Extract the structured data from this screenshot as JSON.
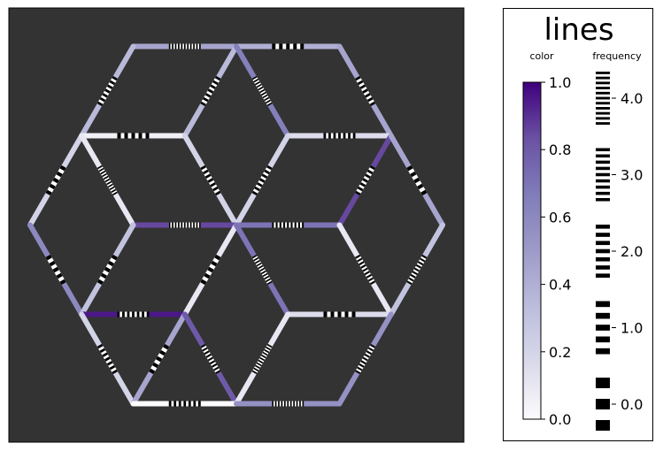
{
  "chart_data": {
    "type": "line",
    "title": "",
    "background_color": "#333333",
    "segment_colormap": "Purples",
    "colormap_stops": [
      "#fcfbfd",
      "#dadaeb",
      "#bcbddc",
      "#9e9ac8",
      "#807dba",
      "#6a51a3",
      "#3f007d"
    ],
    "segments": [
      {
        "x1": -2,
        "y1": 4,
        "x2": 0,
        "y2": 4,
        "color_value": 0.45,
        "frequency": 4
      },
      {
        "x1": 0,
        "y1": 4,
        "x2": 2,
        "y2": 4,
        "color_value": 0.4,
        "frequency": 1
      },
      {
        "x1": -2,
        "y1": 4,
        "x2": -3,
        "y2": 2,
        "color_value": 0.35,
        "frequency": 2
      },
      {
        "x1": 0,
        "y1": 4,
        "x2": -1,
        "y2": 2,
        "color_value": 0.35,
        "frequency": 2
      },
      {
        "x1": 0,
        "y1": 4,
        "x2": 1,
        "y2": 2,
        "color_value": 0.65,
        "frequency": 4
      },
      {
        "x1": 2,
        "y1": 4,
        "x2": 3,
        "y2": 2,
        "color_value": 0.45,
        "frequency": 2
      },
      {
        "x1": -3,
        "y1": 2,
        "x2": -1,
        "y2": 2,
        "color_value": 0.05,
        "frequency": 1
      },
      {
        "x1": 1,
        "y1": 2,
        "x2": 3,
        "y2": 2,
        "color_value": 0.15,
        "frequency": 2
      },
      {
        "x1": -3,
        "y1": 2,
        "x2": -4,
        "y2": 0,
        "color_value": 0.2,
        "frequency": 1
      },
      {
        "x1": -3,
        "y1": 2,
        "x2": -2,
        "y2": 0,
        "color_value": 0.1,
        "frequency": 4
      },
      {
        "x1": -1,
        "y1": 2,
        "x2": 0,
        "y2": 0,
        "color_value": 0.2,
        "frequency": 2
      },
      {
        "x1": 1,
        "y1": 2,
        "x2": 0,
        "y2": 0,
        "color_value": 0.2,
        "frequency": 2
      },
      {
        "x1": 3,
        "y1": 2,
        "x2": 2,
        "y2": 0,
        "color_value": 0.85,
        "frequency": 2
      },
      {
        "x1": 3,
        "y1": 2,
        "x2": 4,
        "y2": 0,
        "color_value": 0.45,
        "frequency": 1
      },
      {
        "x1": -2,
        "y1": 0,
        "x2": 0,
        "y2": 0,
        "color_value": 0.85,
        "frequency": 4
      },
      {
        "x1": 0,
        "y1": 0,
        "x2": 2,
        "y2": 0,
        "color_value": 0.7,
        "frequency": 3
      },
      {
        "x1": -4,
        "y1": 0,
        "x2": -3,
        "y2": -2,
        "color_value": 0.6,
        "frequency": 1
      },
      {
        "x1": 0,
        "y1": 0,
        "x2": -1,
        "y2": -2,
        "color_value": 0.1,
        "frequency": 1
      },
      {
        "x1": 0,
        "y1": 0,
        "x2": 1,
        "y2": -2,
        "color_value": 0.7,
        "frequency": 4
      },
      {
        "x1": 2,
        "y1": 0,
        "x2": 3,
        "y2": -2,
        "color_value": 0.1,
        "frequency": 3
      },
      {
        "x1": 4,
        "y1": 0,
        "x2": 3,
        "y2": -2,
        "color_value": 0.3,
        "frequency": 3
      },
      {
        "x1": -2,
        "y1": 0,
        "x2": -3,
        "y2": -2,
        "color_value": 0.3,
        "frequency": 1
      },
      {
        "x1": -3,
        "y1": -2,
        "x2": -1,
        "y2": -2,
        "color_value": 0.95,
        "frequency": 2
      },
      {
        "x1": 1,
        "y1": -2,
        "x2": 3,
        "y2": -2,
        "color_value": 0.15,
        "frequency": 1
      },
      {
        "x1": -3,
        "y1": -2,
        "x2": -2,
        "y2": -4,
        "color_value": 0.2,
        "frequency": 2
      },
      {
        "x1": -1,
        "y1": -2,
        "x2": -2,
        "y2": -4,
        "color_value": 0.45,
        "frequency": 1
      },
      {
        "x1": -1,
        "y1": -2,
        "x2": 0,
        "y2": -4,
        "color_value": 0.8,
        "frequency": 3
      },
      {
        "x1": 1,
        "y1": -2,
        "x2": 0,
        "y2": -4,
        "color_value": 0.1,
        "frequency": 4
      },
      {
        "x1": 3,
        "y1": -2,
        "x2": 2,
        "y2": -4,
        "color_value": 0.55,
        "frequency": 3
      },
      {
        "x1": -2,
        "y1": -4,
        "x2": 0,
        "y2": -4,
        "color_value": 0.0,
        "frequency": 2
      },
      {
        "x1": 0,
        "y1": -4,
        "x2": 2,
        "y2": -4,
        "color_value": 0.55,
        "frequency": 4
      }
    ],
    "legend": {
      "title": "lines",
      "color_label": "color",
      "frequency_label": "frequency",
      "color_ticks": [
        "0.0",
        "0.2",
        "0.4",
        "0.6",
        "0.8",
        "1.0"
      ],
      "frequency_ticks": [
        "0.0",
        "1.0",
        "2.0",
        "3.0",
        "4.0"
      ],
      "placement": "right"
    }
  }
}
